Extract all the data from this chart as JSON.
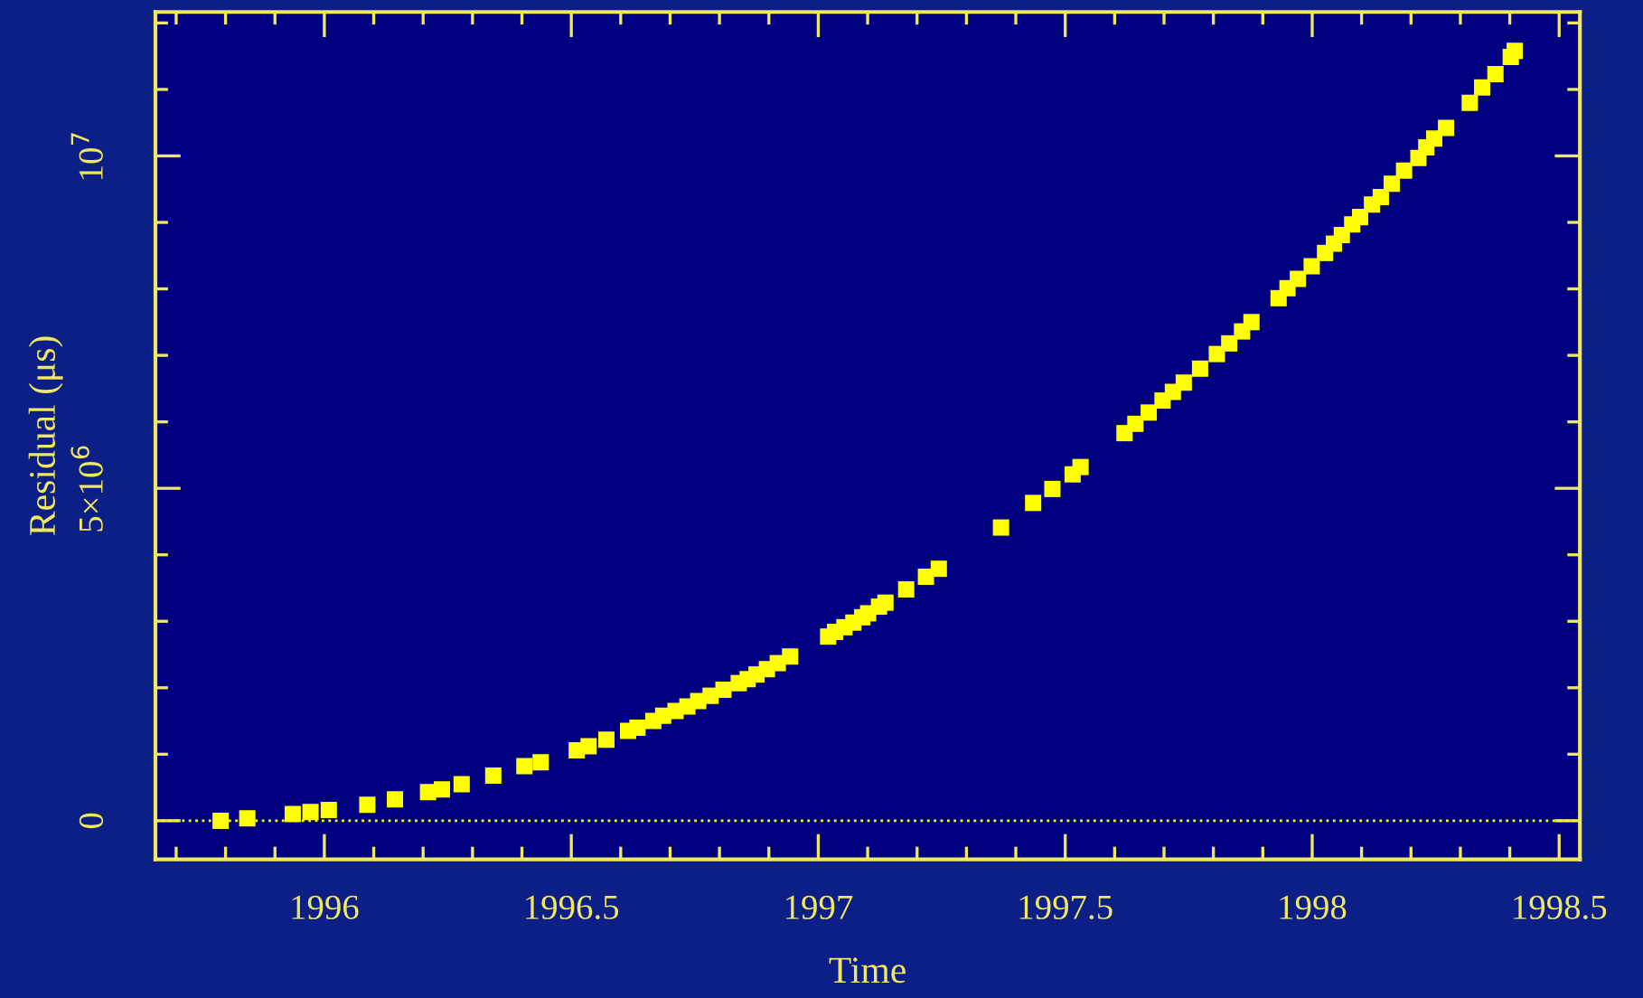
{
  "chart_data": {
    "type": "scatter",
    "xlabel": "Time",
    "ylabel": "Residual (μs)",
    "x": [
      1995.79,
      1995.844,
      1995.936,
      1995.972,
      1996.009,
      1996.087,
      1996.143,
      1996.21,
      1996.238,
      1996.278,
      1996.342,
      1996.405,
      1996.438,
      1996.511,
      1996.535,
      1996.571,
      1996.615,
      1996.634,
      1996.666,
      1996.686,
      1996.711,
      1996.735,
      1996.757,
      1996.782,
      1996.808,
      1996.839,
      1996.857,
      1996.875,
      1996.896,
      1996.918,
      1996.943,
      1997.02,
      1997.034,
      1997.053,
      1997.071,
      1997.089,
      1997.101,
      1997.123,
      1997.136,
      1997.178,
      1997.218,
      1997.244,
      1997.37,
      1997.435,
      1997.474,
      1997.515,
      1997.531,
      1997.62,
      1997.642,
      1997.669,
      1997.697,
      1997.718,
      1997.74,
      1997.773,
      1997.807,
      1997.832,
      1997.858,
      1997.877,
      1997.932,
      1997.95,
      1997.971,
      1997.999,
      1998.026,
      1998.044,
      1998.06,
      1998.081,
      1998.097,
      1998.121,
      1998.139,
      1998.161,
      1998.186,
      1998.215,
      1998.231,
      1998.247,
      1998.271,
      1998.319,
      1998.344,
      1998.371,
      1998.402,
      1998.41
    ],
    "series": [
      {
        "color": "#ffff00",
        "values": [
          0,
          35000,
          100000,
          130000,
          160000,
          240000,
          320000,
          430000,
          470000,
          550000,
          680000,
          820000,
          880000,
          1060000,
          1120000,
          1220000,
          1350000,
          1400000,
          1500000,
          1580000,
          1650000,
          1720000,
          1800000,
          1880000,
          1970000,
          2070000,
          2130000,
          2200000,
          2280000,
          2370000,
          2470000,
          2770000,
          2840000,
          2910000,
          2980000,
          3060000,
          3120000,
          3220000,
          3280000,
          3480000,
          3670000,
          3790000,
          4410000,
          4780000,
          4990000,
          5210000,
          5320000,
          5830000,
          5970000,
          6140000,
          6320000,
          6450000,
          6590000,
          6800000,
          7020000,
          7180000,
          7360000,
          7500000,
          7860000,
          8010000,
          8150000,
          8340000,
          8540000,
          8680000,
          8810000,
          8970000,
          9080000,
          9270000,
          9380000,
          9580000,
          9780000,
          9970000,
          10130000,
          10260000,
          10420000,
          10800000,
          11030000,
          11230000,
          11490000,
          11580000
        ]
      }
    ],
    "marker": "square",
    "grid": false,
    "legend": false,
    "xlim": [
      1995.658,
      1998.542
    ],
    "ylim": [
      -580000,
      12165000
    ],
    "xticks": [
      {
        "value": 1995.7,
        "label": null
      },
      {
        "value": 1995.8,
        "label": null
      },
      {
        "value": 1995.9,
        "label": null
      },
      1996,
      {
        "value": 1996.1,
        "label": null
      },
      {
        "value": 1996.2,
        "label": null
      },
      {
        "value": 1996.3,
        "label": null
      },
      {
        "value": 1996.4,
        "label": null
      },
      1996.5,
      {
        "value": 1996.6,
        "label": null
      },
      {
        "value": 1996.7,
        "label": null
      },
      {
        "value": 1996.8,
        "label": null
      },
      {
        "value": 1996.9,
        "label": null
      },
      1997,
      {
        "value": 1997.1,
        "label": null
      },
      {
        "value": 1997.2,
        "label": null
      },
      {
        "value": 1997.3,
        "label": null
      },
      {
        "value": 1997.4,
        "label": null
      },
      1997.5,
      {
        "value": 1997.6,
        "label": null
      },
      {
        "value": 1997.7,
        "label": null
      },
      {
        "value": 1997.8,
        "label": null
      },
      {
        "value": 1997.9,
        "label": null
      },
      1998,
      {
        "value": 1998.1,
        "label": null
      },
      {
        "value": 1998.2,
        "label": null
      },
      {
        "value": 1998.3,
        "label": null
      },
      {
        "value": 1998.4,
        "label": null
      },
      1998.5
    ],
    "yticks": [
      0,
      {
        "value": 1000000,
        "label": null
      },
      {
        "value": 2000000,
        "label": null
      },
      {
        "value": 3000000,
        "label": null
      },
      {
        "value": 4000000,
        "label": null
      },
      {
        "value": 5000000,
        "label": "5×10$^{6}$"
      },
      {
        "value": 6000000,
        "label": null
      },
      {
        "value": 7000000,
        "label": null
      },
      {
        "value": 8000000,
        "label": null
      },
      {
        "value": 9000000,
        "label": null
      },
      {
        "value": 10000000,
        "label": "10$^{7}$"
      },
      {
        "value": 11000000,
        "label": null
      },
      {
        "value": 12000000,
        "label": null
      }
    ],
    "ref_lines": [
      {
        "axis": "y",
        "value": 0,
        "color": "#ffff00",
        "line_style": "dotted"
      }
    ]
  }
}
